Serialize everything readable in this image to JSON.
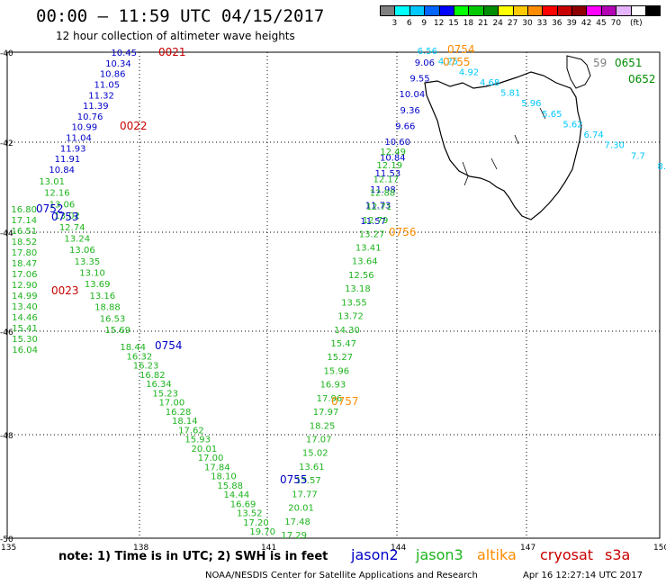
{
  "title": "00:00 – 11:59 UTC 04/15/2017",
  "subtitle": "12 hour collection of altimeter wave heights",
  "colorbar": {
    "colors": [
      "#7f7f7f",
      "#00ffff",
      "#00c8ff",
      "#0064ff",
      "#0000ff",
      "#00ff00",
      "#00c800",
      "#008c00",
      "#ffff00",
      "#ffc800",
      "#ff8c00",
      "#ff0000",
      "#c80000",
      "#8c0000",
      "#ff00ff",
      "#b400b4",
      "#e6b4ff",
      "#ffffff",
      "#000000"
    ],
    "labels": [
      "3",
      "6",
      "9",
      "12",
      "15",
      "18",
      "21",
      "24",
      "27",
      "30",
      "33",
      "36",
      "39",
      "42",
      "45",
      "70",
      "(ft)"
    ]
  },
  "axes": {
    "lat_labels": [
      "-40",
      "-42",
      "-44",
      "-46",
      "-48",
      "-50"
    ],
    "lon_labels": [
      "135",
      "138",
      "141",
      "144",
      "147",
      "150"
    ]
  },
  "tracks": [
    {
      "name": "t0021",
      "color": "#0000c8",
      "labels": [
        "10.45",
        "10.34",
        "10.86",
        "11.05",
        "11.32",
        "11.39",
        "10.76",
        "10.99",
        "11.04",
        "11.93",
        "11.91",
        "10.84"
      ]
    },
    {
      "name": "t0021b",
      "color": "#1eb41e",
      "labels": [
        "13.01",
        "12.16",
        "13.06",
        "13.02",
        "12.74",
        "13.24",
        "13.06",
        "13.35",
        "13.10",
        "13.69",
        "13.16",
        "18.88",
        "16.53",
        "15.69"
      ]
    },
    {
      "name": "t0021c",
      "color": "#1eb41e",
      "labels": [
        "18.44",
        "16.32",
        "16.23",
        "16.82",
        "16.34",
        "15.23",
        "17.00",
        "16.28",
        "18.14",
        "17.62",
        "15.93",
        "20.01",
        "17.00",
        "17.84",
        "18.10",
        "15.88",
        "14.44",
        "16.69",
        "13.52",
        "17.20",
        "19.70"
      ]
    },
    {
      "name": "t0022",
      "color": "#1eb41e",
      "labels": [
        "16.80",
        "17.14",
        "16.51",
        "18.52",
        "17.80",
        "18.47",
        "17.06",
        "12.90",
        "14.99",
        "13.40",
        "14.46",
        "15.41",
        "15.30",
        "16.04"
      ]
    },
    {
      "name": "t0754",
      "color": "#0000c8",
      "labels": [
        "9.06",
        "9.55",
        "10.04",
        "9.36",
        "9.66",
        "10.60",
        "10.84",
        "11.53",
        "11.98",
        "11.73",
        "11.57"
      ]
    },
    {
      "name": "t0754b",
      "color": "#1eb41e",
      "labels": [
        "12.49",
        "12.19",
        "12.17",
        "12.88",
        "12.71",
        "12.79",
        "13.27",
        "13.41",
        "13.64",
        "12.56",
        "13.18",
        "13.55",
        "13.72",
        "14.30",
        "15.47",
        "15.27",
        "15.96",
        "16.93",
        "17.96",
        "17.97",
        "18.25",
        "17.07",
        "15.02",
        "13.61",
        "13.57",
        "17.77",
        "20.01",
        "17.48",
        "17.29"
      ]
    },
    {
      "name": "t0651",
      "color": "#00c8ff",
      "labels": [
        "6.56",
        "4.25",
        "4.92",
        "4.68",
        "5.81",
        "5.96",
        "5.65",
        "5.62",
        "6.74",
        "7.30",
        "7.7",
        "8."
      ]
    }
  ],
  "pass_labels": [
    {
      "text": "0021",
      "color": "#c80000"
    },
    {
      "text": "0022",
      "color": "#c80000"
    },
    {
      "text": "0023",
      "color": "#c80000"
    },
    {
      "text": "0752",
      "color": "#0000c8"
    },
    {
      "text": "0753",
      "color": "#0000c8"
    },
    {
      "text": "0754",
      "color": "#0000c8"
    },
    {
      "text": "0755",
      "color": "#0000c8"
    },
    {
      "text": "0754",
      "color": "#ff8c00"
    },
    {
      "text": "0755",
      "color": "#ff8c00"
    },
    {
      "text": "0756",
      "color": "#ff8c00"
    },
    {
      "text": "0757",
      "color": "#ff8c00"
    },
    {
      "text": "0651",
      "color": "#008c00"
    },
    {
      "text": "0652",
      "color": "#008c00"
    },
    {
      "text": "59",
      "color": "#7f7f7f"
    }
  ],
  "footer": {
    "note": "note: 1) Time is in UTC; 2) SWH is in feet",
    "legend": [
      {
        "label": "jason2",
        "color": "#0000c8"
      },
      {
        "label": "jason3",
        "color": "#1eb41e"
      },
      {
        "label": "altika",
        "color": "#ff8c00"
      },
      {
        "label": "cryosat",
        "color": "#c80000"
      },
      {
        "label": "s3a",
        "color": "#c80000"
      }
    ],
    "credit": "NOAA/NESDIS Center for Satellite Applications and Research",
    "stamp": "Apr 16 12:27:14 UTC 2017"
  }
}
